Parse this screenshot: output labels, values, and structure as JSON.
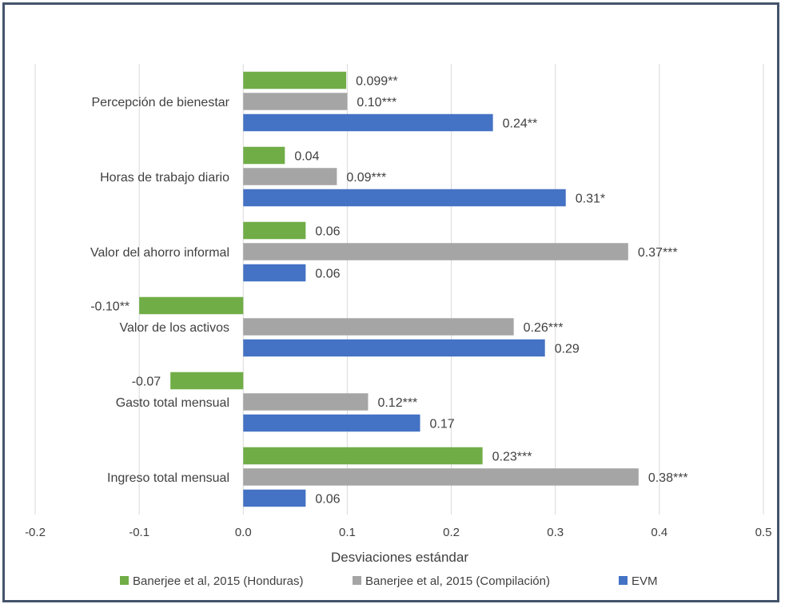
{
  "chart_data": {
    "type": "bar",
    "orientation": "horizontal",
    "xlabel": "Desviaciones estándar",
    "xlim": [
      -0.2,
      0.5
    ],
    "xticks": [
      -0.2,
      -0.1,
      0.0,
      0.1,
      0.2,
      0.3,
      0.4,
      0.5
    ],
    "xtick_labels": [
      "-0.2",
      "-0.1",
      "0.0",
      "0.1",
      "0.2",
      "0.3",
      "0.4",
      "0.5"
    ],
    "grid": "vertical",
    "legend_position": "bottom",
    "categories": [
      "Percepción de bienestar",
      "Horas de trabajo diario",
      "Valor del ahorro informal",
      "Valor de los activos",
      "Gasto total mensual",
      "Ingreso total mensual"
    ],
    "series": [
      {
        "name": "Banerjee et al, 2015 (Honduras)",
        "color": "#70ad47",
        "values": [
          0.099,
          0.04,
          0.06,
          -0.1,
          -0.07,
          0.23
        ],
        "labels": [
          "0.099**",
          "0.04",
          "0.06",
          "-0.10**",
          "-0.07",
          "0.23***"
        ]
      },
      {
        "name": "Banerjee et al, 2015 (Compilación)",
        "color": "#a5a5a5",
        "values": [
          0.1,
          0.09,
          0.37,
          0.26,
          0.12,
          0.38
        ],
        "labels": [
          "0.10***",
          "0.09***",
          "0.37***",
          "0.26***",
          "0.12***",
          "0.38***"
        ]
      },
      {
        "name": "EVM",
        "color": "#4472c4",
        "values": [
          0.24,
          0.31,
          0.06,
          0.29,
          0.17,
          0.06
        ],
        "labels": [
          "0.24**",
          "0.31*",
          "0.06",
          "0.29",
          "0.17",
          "0.06"
        ]
      }
    ]
  }
}
